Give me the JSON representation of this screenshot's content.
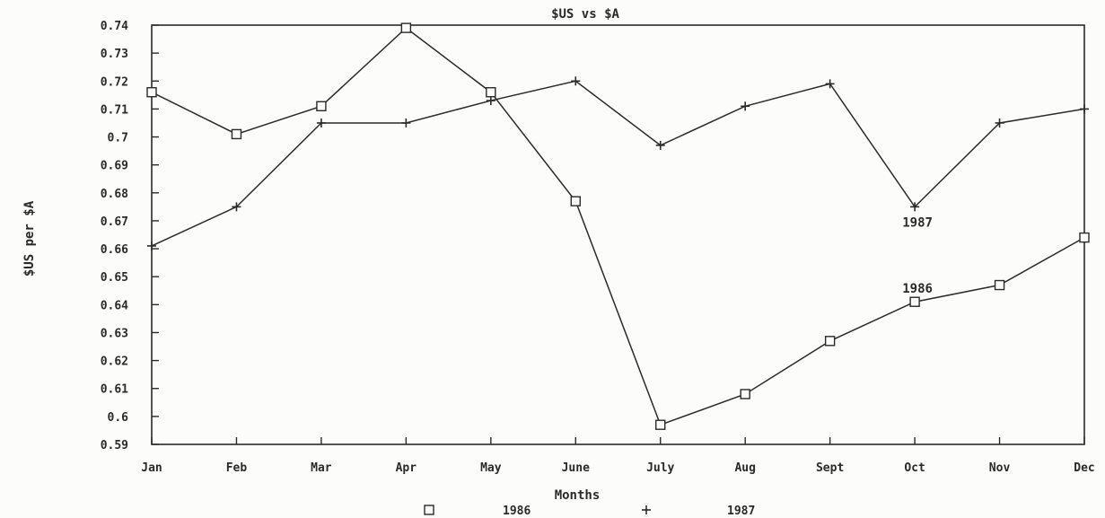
{
  "chart_data": {
    "type": "line",
    "title": "$US vs $A",
    "xlabel": "Months",
    "ylabel": "$US per $A",
    "categories": [
      "Jan",
      "Feb",
      "Mar",
      "Apr",
      "May",
      "June",
      "July",
      "Aug",
      "Sept",
      "Oct",
      "Nov",
      "Dec"
    ],
    "ylim": [
      0.59,
      0.74
    ],
    "yticks": [
      "0.59",
      "0.6",
      "0.61",
      "0.62",
      "0.63",
      "0.64",
      "0.65",
      "0.66",
      "0.67",
      "0.68",
      "0.69",
      "0.7",
      "0.71",
      "0.72",
      "0.73",
      "0.74"
    ],
    "grid": false,
    "legend_position": "bottom",
    "series": [
      {
        "name": "1986",
        "marker": "square",
        "values": [
          0.716,
          0.701,
          0.711,
          0.739,
          0.716,
          0.677,
          0.597,
          0.608,
          0.627,
          0.641,
          0.647,
          0.664
        ]
      },
      {
        "name": "1987",
        "marker": "plus",
        "values": [
          0.661,
          0.675,
          0.705,
          0.705,
          0.713,
          0.72,
          0.697,
          0.711,
          0.719,
          0.675,
          0.705,
          0.71
        ]
      }
    ],
    "annotations": [
      {
        "text": "1987",
        "x": "Oct",
        "y": 0.675
      },
      {
        "text": "1986",
        "x": "Oct",
        "y": 0.641
      }
    ]
  }
}
